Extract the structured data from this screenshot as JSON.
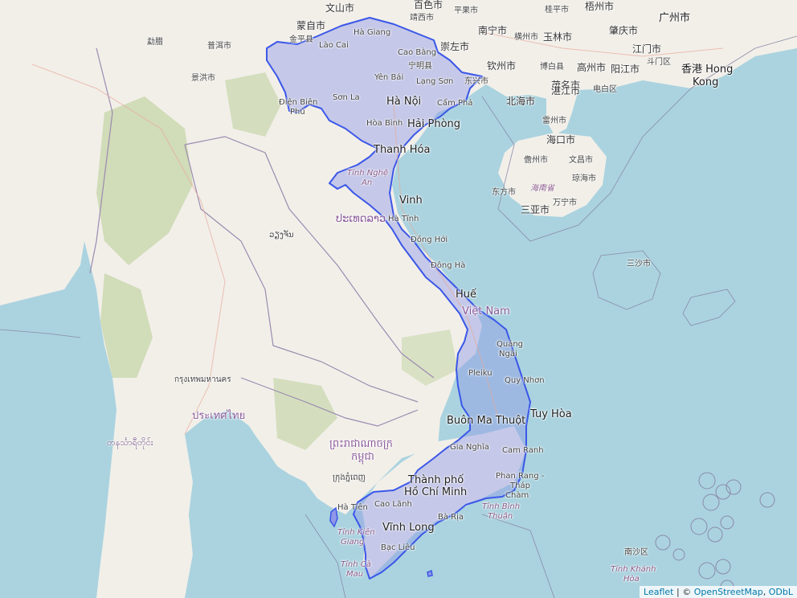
{
  "map": {
    "highlight_color": "#3b57e8",
    "highlight_fill": "#8f98e6",
    "water_color": "#aad3df",
    "land_color": "#f2efe9",
    "forest_color": "#c8d7ab"
  },
  "labels": {
    "wenshan": "文山市",
    "mengzi": "蒙自市",
    "baise": "百色市",
    "jingxi": "靖西市",
    "pingguo": "平果市",
    "nanning": "南宁市",
    "chongzuo": "崇左市",
    "hengzhou": "横州市",
    "yulin": "玉林市",
    "wuzhou": "梧州市",
    "guiping": "桂平市",
    "zhaoqing": "肇庆市",
    "guangzhou": "广州市",
    "jiangmen": "江门市",
    "doumen": "斗门区",
    "hongkong1": "香港 Hong",
    "hongkong2": "Kong",
    "yangjiang": "阳江市",
    "maoming": "茂名市",
    "gaozhou": "高州市",
    "bobai": "博白县",
    "qinzhou": "钦州市",
    "dongxing": "东兴市",
    "beihai": "北海市",
    "zhanjiang": "湛江市",
    "dianbai": "电白区",
    "leizhou": "雷州市",
    "haikou": "海口市",
    "danzhou": "儋州市",
    "wenchang": "文昌市",
    "qionghai": "琼海市",
    "dongfang": "东方市",
    "hainan": "海南省",
    "wanning": "万宁市",
    "sanya": "三亚市",
    "sansha": "三沙市",
    "nansha": "南沙区",
    "hagiang": "Hà Giang",
    "laocai": "Lào Cai",
    "caobang": "Cao Bằng",
    "ningming": "宁明县",
    "yenbai": "Yên Bái",
    "langson": "Lạng Sơn",
    "dienbien1": "Điện Biên",
    "dienbien2": "Phủ",
    "sonla": "Sơn La",
    "hanoi": "Hà Nội",
    "campha": "Cẩm Phả",
    "hoabinh": "Hòa Bình",
    "haiphong": "Hải Phòng",
    "thanhhoa": "Thanh Hóa",
    "nghean1": "Tỉnh Nghệ",
    "nghean2": "An",
    "vinh": "Vinh",
    "hatinh": "Hà Tĩnh",
    "donghoi": "Đồng Hới",
    "dongha": "Đông Hà",
    "hue": "Huế",
    "vietnam": "Việt Nam",
    "quangngai1": "Quảng",
    "quangngai2": "Ngãi",
    "pleiku": "Pleiku",
    "quynhon": "Quy Nhơn",
    "buonmathuot": "Buôn Ma Thuột",
    "tuyhoa": "Tuy Hòa",
    "gianghia": "Gia Nghĩa",
    "camranh": "Cam Ranh",
    "phanrang1": "Phan Rang -",
    "phanrang2": "Tháp",
    "phanrang3": "Chàm",
    "hcm1": "Thành phố",
    "hcm2": "Hồ Chí Minh",
    "binhthuan1": "Tỉnh Bình",
    "binhthuan2": "Thuận",
    "caolanh": "Cao Lãnh",
    "hatien": "Hà Tiên",
    "baria": "Bà Rịa",
    "vinhlong": "Vĩnh Long",
    "kiengiang1": "Tỉnh Kiên",
    "kiengiang2": "Giang",
    "baclieu": "Bạc Liêu",
    "camau1": "Tỉnh Cà",
    "camau2": "Mau",
    "khanhhoa1": "Tỉnh Khánh",
    "khanhhoa2": "Hòa",
    "jinghong": "景洪市",
    "puer": "普洱市",
    "mengla": "勐腊",
    "jinping": "金平县",
    "laos": "ປະເທດລາວ",
    "thailand": "ประเทศไทย",
    "cambodia1": "ព្រះរាជាណាចក្រ",
    "cambodia2": "កម្ពុជា",
    "bangkok": "กรุงเทพมหานคร",
    "vientiane": "ວຽງຈັນ",
    "phnompenh": "ក្រុងភ្នំពេញ",
    "myanmar_tenasserim": "တနင်္သာရီတိုင်း"
  },
  "attribution": {
    "leaflet": "Leaflet",
    "separator": "|",
    "copyright": "©",
    "osm": "OpenStreetMap",
    "odbl": "ODbL"
  }
}
